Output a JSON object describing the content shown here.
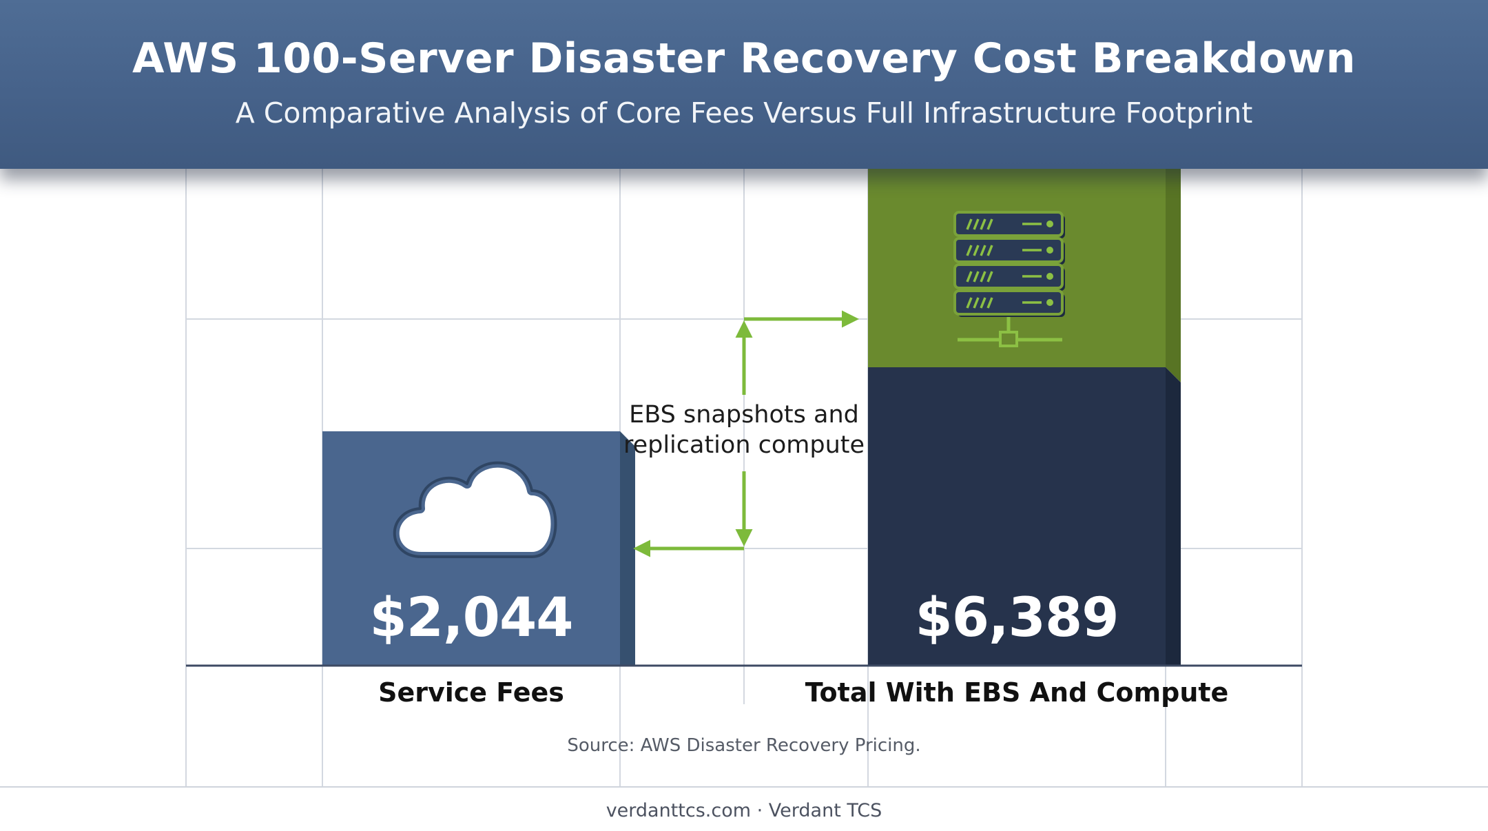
{
  "header": {
    "title": "AWS 100-Server Disaster Recovery Cost Breakdown",
    "subtitle": "A Comparative Analysis of Core Fees Versus Full Infrastructure Footprint"
  },
  "chart_data": {
    "type": "bar",
    "categories": [
      "Service Fees",
      "Total With EBS And Compute"
    ],
    "values": [
      2044,
      6389
    ],
    "value_labels": [
      "$2,044",
      "$6,389"
    ],
    "title": "AWS 100-Server Disaster Recovery Cost Breakdown",
    "subtitle": "A Comparative Analysis of Core Fees Versus Full Infrastructure Footprint",
    "xlabel": "",
    "ylabel": "",
    "ylim": [
      0,
      8200
    ],
    "grid": true,
    "legend": "none",
    "annotations": [
      {
        "text": "EBS snapshots and replication compute",
        "type": "difference-arrow"
      }
    ],
    "stack_top_segment": "EBS snapshots and replication compute",
    "colors": {
      "service_fees": "#4a668e",
      "total": "#26334c",
      "ebs_compute": "#6a8a2e",
      "arrow": "#7dba3b"
    }
  },
  "icons": {
    "bar1": "cloud-icon",
    "bar2": "server-rack-icon"
  },
  "source": "Source: AWS Disaster Recovery Pricing.",
  "footer": "verdanttcs.com · Verdant TCS"
}
